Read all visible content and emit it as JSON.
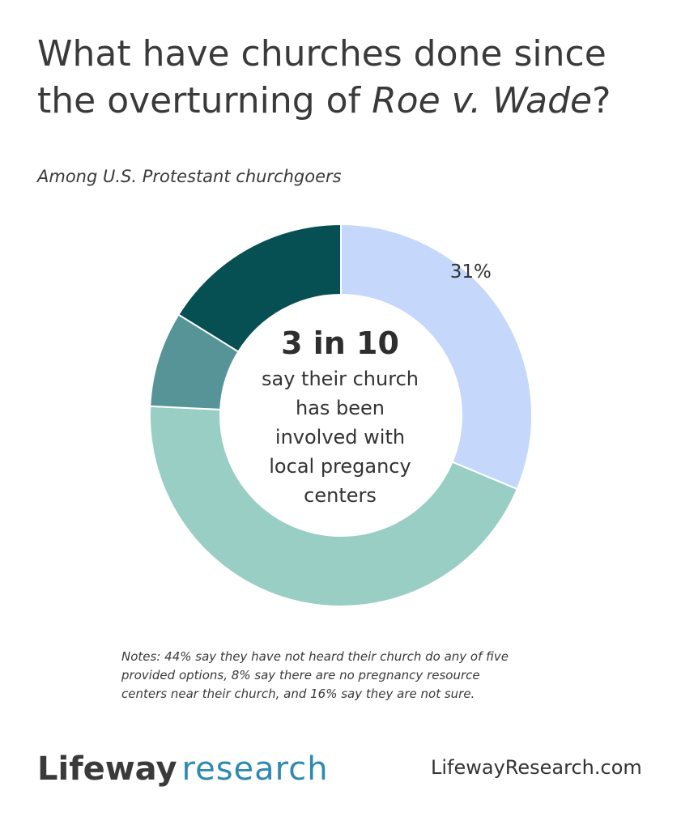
{
  "title": {
    "line1": "What have churches done since",
    "line2_prefix": "the overturning of ",
    "line2_italic": "Roe v. Wade",
    "line2_suffix": "?"
  },
  "subtitle": "Among U.S. Protestant churchgoers",
  "center": {
    "headline": "3 in 10",
    "lines": [
      "say their church",
      "has been",
      "involved with",
      "local pregancy",
      "centers"
    ]
  },
  "notes": [
    "Notes: 44% say they have not heard their church do any of five",
    "provided options, 8% say there are no pregnancy resource",
    "centers near their church, and 16% say they are not sure."
  ],
  "logo": {
    "part1": "Lifeway",
    "part2": "research"
  },
  "website": "LifewayResearch.com",
  "chart_data": {
    "type": "pie",
    "donut": true,
    "slices": [
      {
        "value": 31,
        "label": "31%",
        "color": "#c5d7fb"
      },
      {
        "value": 44,
        "label": "",
        "color": "#98cec4"
      },
      {
        "value": 8,
        "label": "",
        "color": "#579498"
      },
      {
        "value": 16,
        "label": "",
        "color": "#064f53"
      }
    ],
    "start": "12 o'clock",
    "direction": "clockwise"
  }
}
